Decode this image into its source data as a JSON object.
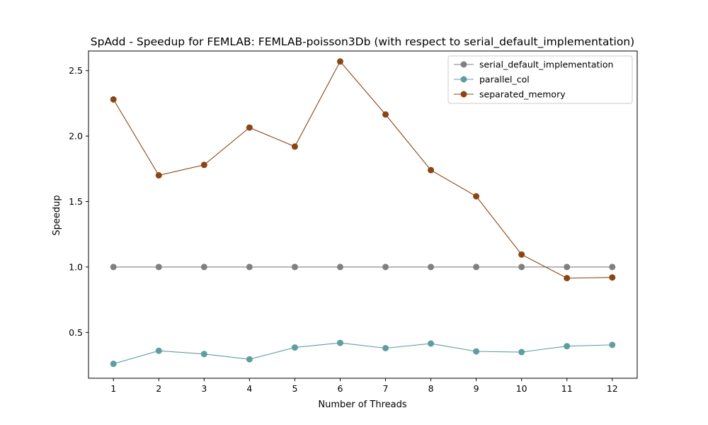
{
  "chart_data": {
    "type": "line",
    "title": "SpAdd - Speedup for FEMLAB: FEMLAB-poisson3Db (with respect to serial_default_implementation)",
    "xlabel": "Number of Threads",
    "ylabel": "Speedup",
    "x": [
      1,
      2,
      3,
      4,
      5,
      6,
      7,
      8,
      9,
      10,
      11,
      12
    ],
    "xlim": [
      0.45,
      12.55
    ],
    "ylim": [
      0.15,
      2.65
    ],
    "yticks": [
      0.5,
      1.0,
      1.5,
      2.0,
      2.5
    ],
    "ytick_labels": [
      "0.5",
      "1.0",
      "1.5",
      "2.0",
      "2.5"
    ],
    "xtick_labels": [
      "1",
      "2",
      "3",
      "4",
      "5",
      "6",
      "7",
      "8",
      "9",
      "10",
      "11",
      "12"
    ],
    "grid": false,
    "legend_position": "top-right",
    "series": [
      {
        "name": "serial_default_implementation",
        "color": "#808080",
        "values": [
          1.0,
          1.0,
          1.0,
          1.0,
          1.0,
          1.0,
          1.0,
          1.0,
          1.0,
          1.0,
          1.0,
          1.0
        ]
      },
      {
        "name": "parallel_col",
        "color": "#5f9ea0",
        "values": [
          0.26,
          0.36,
          0.335,
          0.295,
          0.385,
          0.42,
          0.38,
          0.415,
          0.355,
          0.35,
          0.395,
          0.405
        ]
      },
      {
        "name": "separated_memory",
        "color": "#8b4513",
        "values": [
          2.28,
          1.7,
          1.78,
          2.065,
          1.92,
          2.57,
          2.165,
          1.74,
          1.54,
          1.095,
          0.915,
          0.92
        ]
      }
    ]
  }
}
